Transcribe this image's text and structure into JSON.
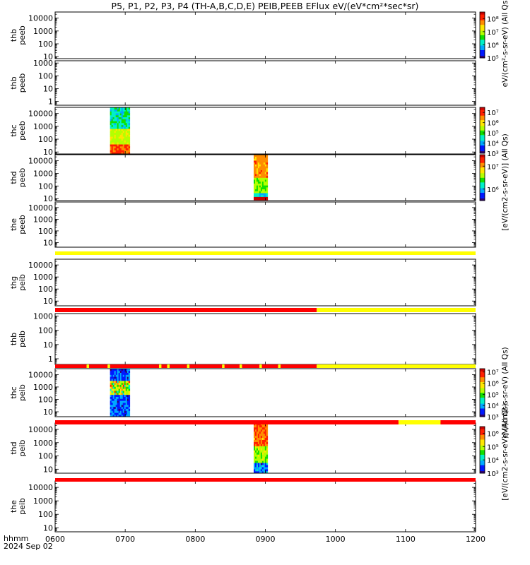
{
  "title": "P5, P1, P2, P3, P4 (TH-A,B,C,D,E) PEIB,PEEB EFlux eV/(eV*cm²*sec*sr)",
  "time_axis": {
    "label": "hhmm",
    "date": "2024 Sep 02",
    "ticks": [
      "0600",
      "0700",
      "0800",
      "0900",
      "1000",
      "1100",
      "1200"
    ],
    "start": "0600",
    "end": "1200"
  },
  "colorbar_labels": {
    "peeb_a": "eV/(cm²-s-sr-eV) (All Qs)",
    "peeb_cde": "[eV/(cm2-s-sr-eV)] (All Qs)",
    "peib_a": "eV/(cm2-s-sr-eV) (All Qs)",
    "peib_cde": "[eV/(cm2-s-sr-eV)] (All Qs)"
  },
  "chart_data": {
    "type": "heatmap",
    "x_units": "hhmm UT",
    "x_range": [
      "0600",
      "1200"
    ],
    "panels": [
      {
        "probe": "thb",
        "product": "peeb",
        "ylabel": [
          "thb",
          "peeb"
        ],
        "ylim": [
          7,
          30000
        ],
        "yscale": "log",
        "yticks": [
          "10",
          "100",
          "1000",
          "10000"
        ],
        "data_interval": null
      },
      {
        "probe": "thb",
        "product": "peeb",
        "ylabel": [
          "thb",
          "peeb"
        ],
        "ylim": [
          0.5,
          1500
        ],
        "yscale": "log",
        "yticks": [
          "1",
          "10",
          "100",
          "1000"
        ],
        "data_interval": null
      },
      {
        "probe": "thc",
        "product": "peeb",
        "ylabel": [
          "thc",
          "peeb"
        ],
        "ylim": [
          7,
          30000
        ],
        "yscale": "log",
        "yticks": [
          "10",
          "100",
          "1000",
          "10000"
        ],
        "data_interval": [
          "0647",
          "0704"
        ],
        "profile": "peeb_c"
      },
      {
        "probe": "thd",
        "product": "peeb",
        "ylabel": [
          "thd",
          "peeb"
        ],
        "ylim": [
          7,
          30000
        ],
        "yscale": "log",
        "yticks": [
          "10",
          "100",
          "1000",
          "10000"
        ],
        "data_interval": [
          "0850",
          "0902"
        ],
        "profile": "peeb_d"
      },
      {
        "probe": "the",
        "product": "peeb",
        "ylabel": [
          "the",
          "peeb"
        ],
        "ylim": [
          4,
          30000
        ],
        "yscale": "log",
        "yticks": [
          "10",
          "100",
          "1000",
          "10000"
        ],
        "data_interval": null
      },
      {
        "probe": "thg",
        "product": "peib",
        "ylabel": [
          "thg",
          "peib"
        ],
        "ylim": [
          4,
          30000
        ],
        "yscale": "log",
        "yticks": [
          "10",
          "100",
          "1000",
          "10000"
        ],
        "data_interval": null
      },
      {
        "probe": "thb",
        "product": "peib",
        "ylabel": [
          "thb",
          "peib"
        ],
        "ylim": [
          0.4,
          1500
        ],
        "yscale": "log",
        "yticks": [
          "1",
          "10",
          "100",
          "1000"
        ],
        "data_interval": null
      },
      {
        "probe": "thc",
        "product": "peib",
        "ylabel": [
          "thc",
          "peib"
        ],
        "ylim": [
          4,
          30000
        ],
        "yscale": "log",
        "yticks": [
          "10",
          "100",
          "1000",
          "10000"
        ],
        "data_interval": [
          "0647",
          "0704"
        ],
        "profile": "peib_c"
      },
      {
        "probe": "thd",
        "product": "peib",
        "ylabel": [
          "thd",
          "peib"
        ],
        "ylim": [
          5,
          30000
        ],
        "yscale": "log",
        "yticks": [
          "10",
          "100",
          "1000",
          "10000"
        ],
        "data_interval": [
          "0850",
          "0902"
        ],
        "profile": "peib_d"
      },
      {
        "probe": "the",
        "product": "peib",
        "ylabel": [
          "the",
          "peib"
        ],
        "ylim": [
          5,
          30000
        ],
        "yscale": "log",
        "yticks": [
          "10",
          "100",
          "1000",
          "10000"
        ],
        "data_interval": null
      }
    ],
    "status_bars": [
      {
        "segments": [
          [
            "0600",
            "1200",
            "yellow"
          ]
        ]
      },
      {
        "segments": [
          [
            "0600",
            "0944",
            "red"
          ],
          [
            "0944",
            "1200",
            "yellow"
          ]
        ]
      },
      {
        "segments": [
          [
            "0600",
            "0627",
            "red"
          ],
          [
            "0627",
            "0629",
            "yellow"
          ],
          [
            "0629",
            "0645",
            "red"
          ],
          [
            "0645",
            "0647",
            "yellow"
          ],
          [
            "0647",
            "0729",
            "red"
          ],
          [
            "0729",
            "0731",
            "yellow"
          ],
          [
            "0731",
            "0736",
            "red"
          ],
          [
            "0736",
            "0738",
            "yellow"
          ],
          [
            "0738",
            "0753",
            "red"
          ],
          [
            "0753",
            "0755",
            "yellow"
          ],
          [
            "0755",
            "0823",
            "red"
          ],
          [
            "0823",
            "0825",
            "yellow"
          ],
          [
            "0825",
            "0838",
            "red"
          ],
          [
            "0838",
            "0840",
            "yellow"
          ],
          [
            "0840",
            "0855",
            "red"
          ],
          [
            "0855",
            "0857",
            "yellow"
          ],
          [
            "0857",
            "0911",
            "red"
          ],
          [
            "0911",
            "0913",
            "yellow"
          ],
          [
            "0913",
            "0944",
            "red"
          ],
          [
            "0944",
            "1200",
            "yellow"
          ]
        ]
      },
      {
        "segments": [
          [
            "0600",
            "1054",
            "red"
          ],
          [
            "1054",
            "1130",
            "yellow"
          ],
          [
            "1130",
            "1200",
            "red"
          ]
        ]
      },
      {
        "segments": [
          [
            "0600",
            "1200",
            "red"
          ]
        ]
      }
    ],
    "colorbars": [
      {
        "ticks": [
          "10⁵",
          "10⁶",
          "10⁷",
          "10⁸"
        ],
        "range": [
          5,
          8.5
        ]
      },
      {
        "ticks": [
          "10³",
          "10⁴",
          "10⁵",
          "10⁶",
          "10⁷"
        ],
        "range": [
          3,
          7.5
        ]
      },
      {
        "ticks": [
          "10⁶",
          "10⁷"
        ],
        "range": [
          5.5,
          7.5
        ]
      },
      {
        "ticks": [
          "10³",
          "10⁴",
          "10⁵",
          "10⁶",
          "10⁷"
        ],
        "range": [
          3,
          7.3
        ]
      },
      {
        "ticks": [
          "10³",
          "10⁴",
          "10⁵",
          "10⁶"
        ],
        "range": [
          3,
          6.5
        ]
      }
    ],
    "colormap": [
      "#30006e",
      "#0018ff",
      "#00a8ff",
      "#00f0c8",
      "#10e000",
      "#b4ff00",
      "#ffe600",
      "#ff8c00",
      "#ff1e00",
      "#c80000"
    ]
  }
}
